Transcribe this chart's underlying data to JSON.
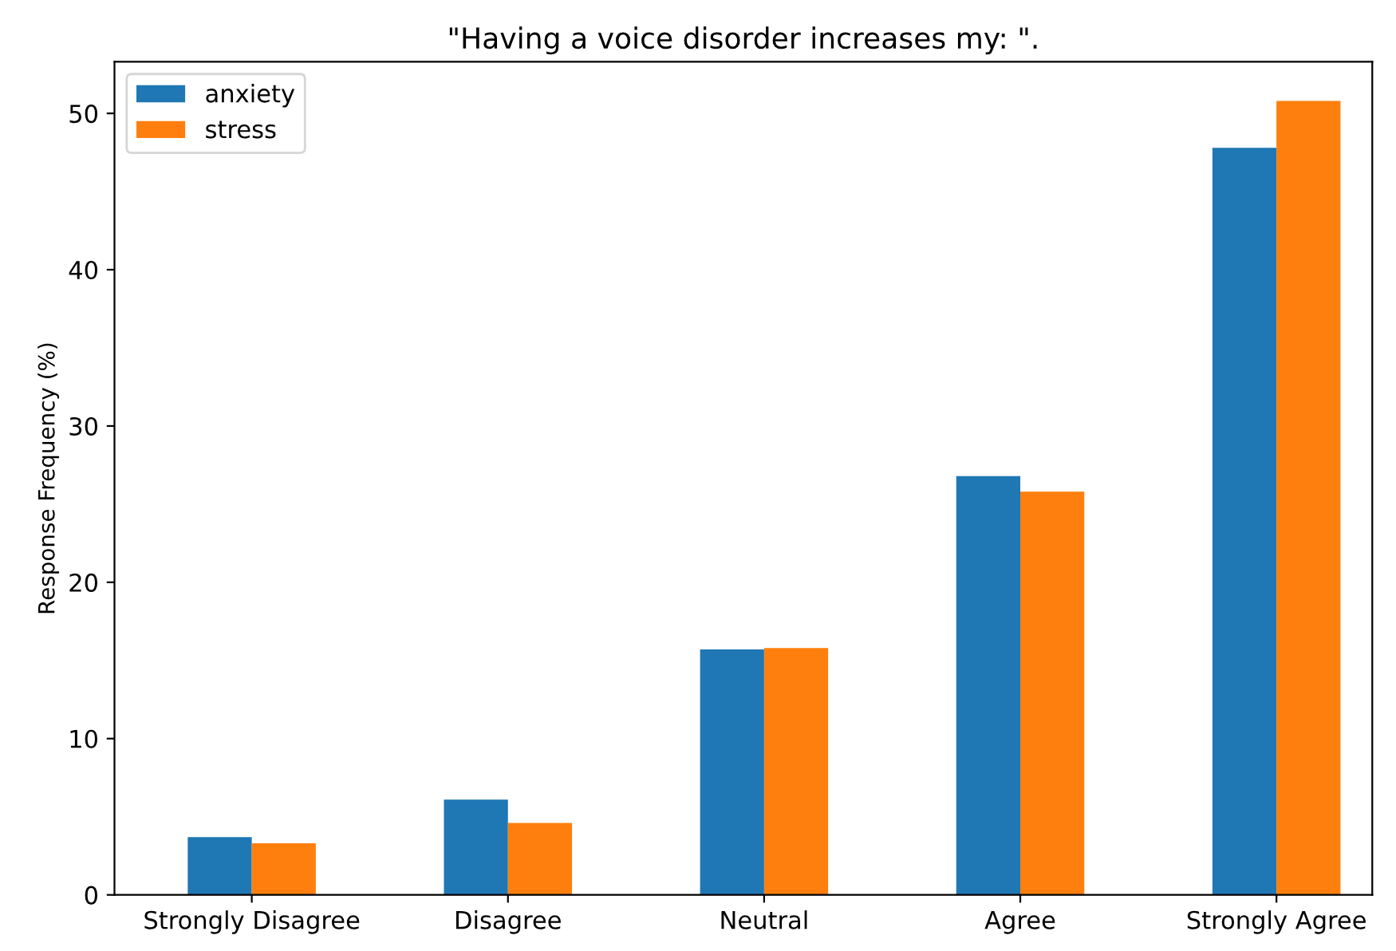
{
  "chart_data": {
    "type": "bar",
    "title": "\"Having a voice disorder increases my: \".",
    "ylabel": "Response Frequency (%)",
    "categories": [
      "Strongly Disagree",
      "Disagree",
      "Neutral",
      "Agree",
      "Strongly Agree"
    ],
    "series": [
      {
        "name": "anxiety",
        "color": "#1f77b4",
        "values": [
          3.7,
          6.1,
          15.7,
          26.8,
          47.8
        ]
      },
      {
        "name": "stress",
        "color": "#ff7f0e",
        "values": [
          3.3,
          4.6,
          15.8,
          25.8,
          50.8
        ]
      }
    ],
    "ylim": [
      0,
      53.3
    ],
    "yticks": [
      0,
      10,
      20,
      30,
      40,
      50
    ],
    "grid": false,
    "legend": "top left"
  }
}
